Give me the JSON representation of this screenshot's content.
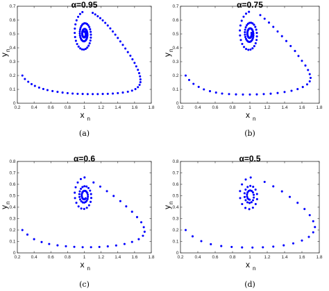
{
  "chart_data": [
    {
      "type": "scatter",
      "title": "α=0.95",
      "caption": "(a)",
      "xlabel": "x",
      "xlabel_sub": "n",
      "ylabel": "y",
      "ylabel_sub": "n",
      "xlim": [
        0.2,
        1.8
      ],
      "ylim": [
        0,
        0.7
      ],
      "xticks": [
        "0.2",
        "0.4",
        "0.6",
        "0.8",
        "1",
        "1.2",
        "1.4",
        "1.6",
        "1.8"
      ],
      "yticks": [
        "0",
        "0.1",
        "0.2",
        "0.3",
        "0.4",
        "0.5",
        "0.6",
        "0.7"
      ],
      "grid": false,
      "marker_color": "#0000ff",
      "spiral": {
        "cx": 1.0,
        "cy": 0.5,
        "r0": 0.175,
        "growth": 0.47,
        "points_per_turn": 28,
        "turns": 3.0,
        "theta0": 1.74
      },
      "tail": [
        [
          0.26,
          0.2
        ],
        [
          0.29,
          0.175
        ],
        [
          0.33,
          0.155
        ],
        [
          0.37,
          0.138
        ],
        [
          0.41,
          0.125
        ],
        [
          0.46,
          0.113
        ],
        [
          0.51,
          0.103
        ],
        [
          0.56,
          0.095
        ],
        [
          0.62,
          0.088
        ],
        [
          0.68,
          0.082
        ],
        [
          0.74,
          0.077
        ],
        [
          0.8,
          0.073
        ],
        [
          0.86,
          0.07
        ],
        [
          0.92,
          0.068
        ],
        [
          0.98,
          0.067
        ],
        [
          1.04,
          0.066
        ],
        [
          1.1,
          0.066
        ],
        [
          1.16,
          0.066
        ],
        [
          1.22,
          0.067
        ],
        [
          1.28,
          0.068
        ],
        [
          1.34,
          0.07
        ],
        [
          1.4,
          0.073
        ],
        [
          1.46,
          0.077
        ],
        [
          1.52,
          0.083
        ],
        [
          1.57,
          0.091
        ],
        [
          1.61,
          0.102
        ],
        [
          1.64,
          0.116
        ],
        [
          1.66,
          0.133
        ],
        [
          1.67,
          0.152
        ],
        [
          1.67,
          0.172
        ],
        [
          1.665,
          0.194
        ],
        [
          1.655,
          0.217
        ],
        [
          1.64,
          0.241
        ],
        [
          1.62,
          0.266
        ],
        [
          1.6,
          0.291
        ],
        [
          1.575,
          0.317
        ],
        [
          1.55,
          0.343
        ],
        [
          1.52,
          0.369
        ],
        [
          1.49,
          0.395
        ],
        [
          1.46,
          0.421
        ],
        [
          1.43,
          0.446
        ],
        [
          1.4,
          0.471
        ],
        [
          1.37,
          0.495
        ],
        [
          1.34,
          0.518
        ],
        [
          1.31,
          0.54
        ],
        [
          1.28,
          0.561
        ],
        [
          1.25,
          0.58
        ],
        [
          1.22,
          0.598
        ],
        [
          1.19,
          0.614
        ],
        [
          1.16,
          0.628
        ],
        [
          1.13,
          0.641
        ],
        [
          1.1,
          0.652
        ]
      ]
    },
    {
      "type": "scatter",
      "title": "α=0.75",
      "caption": "(b)",
      "xlabel": "x",
      "xlabel_sub": "n",
      "ylabel": "y",
      "ylabel_sub": "n",
      "xlim": [
        0.2,
        1.8
      ],
      "ylim": [
        0,
        0.7
      ],
      "xticks": [
        "0.2",
        "0.4",
        "0.6",
        "0.8",
        "1",
        "1.2",
        "1.4",
        "1.6",
        "1.8"
      ],
      "yticks": [
        "0",
        "0.1",
        "0.2",
        "0.3",
        "0.4",
        "0.5",
        "0.6",
        "0.7"
      ],
      "grid": false,
      "marker_color": "#0000ff",
      "spiral": {
        "cx": 1.0,
        "cy": 0.5,
        "r0": 0.19,
        "growth": 0.5,
        "points_per_turn": 24,
        "turns": 2.8,
        "theta0": 1.65
      },
      "tail": [
        [
          0.26,
          0.2
        ],
        [
          0.3,
          0.168
        ],
        [
          0.35,
          0.14
        ],
        [
          0.41,
          0.118
        ],
        [
          0.47,
          0.1
        ],
        [
          0.54,
          0.087
        ],
        [
          0.61,
          0.077
        ],
        [
          0.68,
          0.07
        ],
        [
          0.76,
          0.066
        ],
        [
          0.84,
          0.064
        ],
        [
          0.92,
          0.063
        ],
        [
          1.0,
          0.063
        ],
        [
          1.08,
          0.064
        ],
        [
          1.16,
          0.066
        ],
        [
          1.24,
          0.069
        ],
        [
          1.32,
          0.074
        ],
        [
          1.4,
          0.081
        ],
        [
          1.48,
          0.09
        ],
        [
          1.55,
          0.102
        ],
        [
          1.61,
          0.117
        ],
        [
          1.66,
          0.136
        ],
        [
          1.69,
          0.158
        ],
        [
          1.7,
          0.183
        ],
        [
          1.69,
          0.21
        ],
        [
          1.67,
          0.24
        ],
        [
          1.64,
          0.272
        ],
        [
          1.6,
          0.306
        ],
        [
          1.56,
          0.341
        ],
        [
          1.52,
          0.377
        ],
        [
          1.47,
          0.413
        ],
        [
          1.42,
          0.449
        ],
        [
          1.37,
          0.484
        ],
        [
          1.32,
          0.518
        ],
        [
          1.27,
          0.551
        ],
        [
          1.22,
          0.582
        ],
        [
          1.17,
          0.61
        ],
        [
          1.12,
          0.636
        ]
      ]
    },
    {
      "type": "scatter",
      "title": "α=0.6",
      "caption": "(c)",
      "xlabel": "x",
      "xlabel_sub": "n",
      "ylabel": "y",
      "ylabel_sub": "n",
      "xlim": [
        0.2,
        1.8
      ],
      "ylim": [
        0,
        0.8
      ],
      "xticks": [
        "0.2",
        "0.4",
        "0.6",
        "0.8",
        "1",
        "1.2",
        "1.4",
        "1.6",
        "1.8"
      ],
      "yticks": [
        "0",
        "0.1",
        "0.2",
        "0.3",
        "0.4",
        "0.5",
        "0.6",
        "0.7",
        "0.8"
      ],
      "grid": false,
      "marker_color": "#0000ff",
      "spiral": {
        "cx": 1.0,
        "cy": 0.5,
        "r0": 0.21,
        "growth": 0.52,
        "points_per_turn": 18,
        "turns": 2.6,
        "theta0": 1.55
      },
      "tail": [
        [
          0.26,
          0.2
        ],
        [
          0.32,
          0.16
        ],
        [
          0.4,
          0.12
        ],
        [
          0.49,
          0.095
        ],
        [
          0.58,
          0.078
        ],
        [
          0.68,
          0.066
        ],
        [
          0.78,
          0.058
        ],
        [
          0.88,
          0.053
        ],
        [
          0.98,
          0.05
        ],
        [
          1.08,
          0.05
        ],
        [
          1.18,
          0.052
        ],
        [
          1.28,
          0.057
        ],
        [
          1.38,
          0.065
        ],
        [
          1.48,
          0.078
        ],
        [
          1.57,
          0.096
        ],
        [
          1.65,
          0.12
        ],
        [
          1.7,
          0.15
        ],
        [
          1.72,
          0.185
        ],
        [
          1.71,
          0.225
        ],
        [
          1.68,
          0.268
        ],
        [
          1.63,
          0.313
        ],
        [
          1.57,
          0.36
        ],
        [
          1.5,
          0.407
        ],
        [
          1.43,
          0.453
        ],
        [
          1.35,
          0.498
        ],
        [
          1.27,
          0.54
        ],
        [
          1.19,
          0.58
        ],
        [
          1.11,
          0.616
        ]
      ]
    },
    {
      "type": "scatter",
      "title": "α=0.5",
      "caption": "(d)",
      "xlabel": "x",
      "xlabel_sub": "n",
      "ylabel": "y",
      "ylabel_sub": "n",
      "xlim": [
        0.2,
        1.8
      ],
      "ylim": [
        0,
        0.8
      ],
      "xticks": [
        "0.2",
        "0.4",
        "0.6",
        "0.8",
        "1",
        "1.2",
        "1.4",
        "1.6",
        "1.8"
      ],
      "yticks": [
        "0",
        "0.1",
        "0.2",
        "0.3",
        "0.4",
        "0.5",
        "0.6",
        "0.7",
        "0.8"
      ],
      "grid": false,
      "marker_color": "#0000ff",
      "spiral": {
        "cx": 1.0,
        "cy": 0.5,
        "r0": 0.225,
        "growth": 0.54,
        "points_per_turn": 14,
        "turns": 2.5,
        "theta0": 1.5
      },
      "tail": [
        [
          0.26,
          0.2
        ],
        [
          0.34,
          0.145
        ],
        [
          0.44,
          0.103
        ],
        [
          0.55,
          0.076
        ],
        [
          0.67,
          0.06
        ],
        [
          0.79,
          0.052
        ],
        [
          0.91,
          0.048
        ],
        [
          1.03,
          0.047
        ],
        [
          1.15,
          0.049
        ],
        [
          1.27,
          0.055
        ],
        [
          1.39,
          0.066
        ],
        [
          1.5,
          0.083
        ],
        [
          1.6,
          0.108
        ],
        [
          1.68,
          0.14
        ],
        [
          1.73,
          0.18
        ],
        [
          1.75,
          0.226
        ],
        [
          1.73,
          0.277
        ],
        [
          1.69,
          0.33
        ],
        [
          1.63,
          0.384
        ],
        [
          1.55,
          0.438
        ],
        [
          1.46,
          0.49
        ],
        [
          1.37,
          0.538
        ],
        [
          1.27,
          0.582
        ],
        [
          1.17,
          0.621
        ]
      ]
    }
  ]
}
